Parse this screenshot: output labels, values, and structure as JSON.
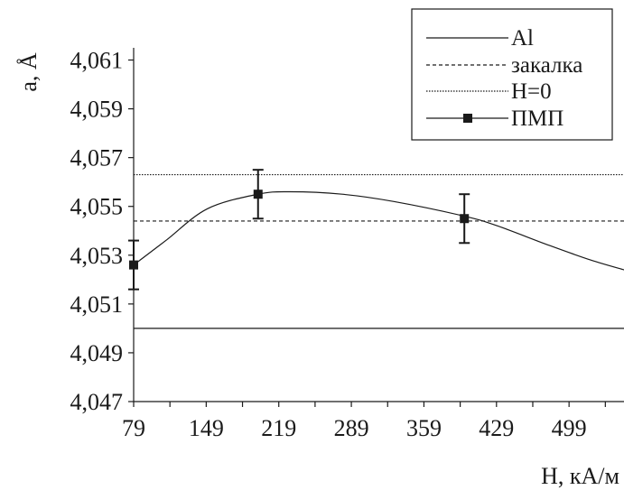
{
  "chart_data": {
    "type": "line",
    "xlabel": "H, кА/м",
    "ylabel": "a, Å",
    "xlim": [
      79,
      552
    ],
    "ylim": [
      4.047,
      4.0615
    ],
    "x_ticks": [
      79,
      149,
      219,
      289,
      359,
      429,
      499
    ],
    "x_tick_labels": [
      "79",
      "149",
      "219",
      "289",
      "359",
      "429",
      "499"
    ],
    "y_ticks": [
      4.047,
      4.049,
      4.051,
      4.053,
      4.055,
      4.057,
      4.059,
      4.061
    ],
    "y_tick_labels": [
      "4,047",
      "4,049",
      "4,051",
      "4,053",
      "4,055",
      "4,057",
      "4,059",
      "4,061"
    ],
    "grid": false,
    "legend_position": "top-right",
    "series": [
      {
        "name": "Al",
        "style": "solid",
        "x": [
          79,
          552
        ],
        "y": [
          4.05,
          4.05
        ]
      },
      {
        "name": "закалка",
        "style": "dashed",
        "x": [
          79,
          552
        ],
        "y": [
          4.0544,
          4.0544
        ]
      },
      {
        "name": "H=0",
        "style": "dotted",
        "x": [
          79,
          552
        ],
        "y": [
          4.0563,
          4.0563
        ]
      },
      {
        "name": "ПМП",
        "style": "markers",
        "marker": "square",
        "x": [
          79,
          199,
          398
        ],
        "y": [
          4.0526,
          4.0555,
          4.0545
        ],
        "yerr": [
          0.001,
          0.001,
          0.001
        ]
      },
      {
        "name": "",
        "style": "solid-curve",
        "x": [
          79,
          110,
          150,
          199,
          230,
          280,
          330,
          398,
          430,
          480,
          520,
          552
        ],
        "y": [
          4.0526,
          4.0536,
          4.0549,
          4.0555,
          4.0556,
          4.0555,
          4.0552,
          4.0546,
          4.0542,
          4.0534,
          4.0528,
          4.0524
        ]
      }
    ]
  }
}
